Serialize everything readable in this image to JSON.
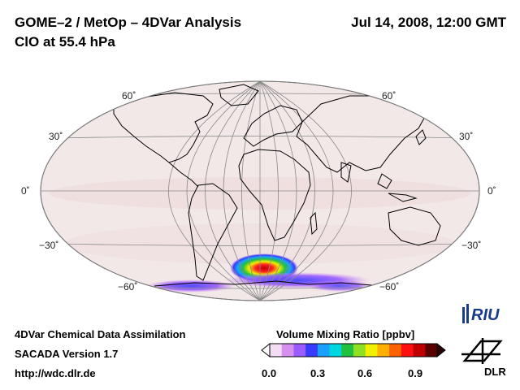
{
  "header": {
    "title_line1": "GOME–2 / MetOp – 4DVar Analysis",
    "title_line2": "ClO at 55.4 hPa",
    "datetime": "Jul 14, 2008, 12:00 GMT"
  },
  "map": {
    "projection": "Hammer-Aitoff (world)",
    "lat_labels": {
      "n60": "60˚",
      "n30": "30˚",
      "eq": "0˚",
      "s30": "−30˚",
      "s60": "−60˚"
    },
    "colors": {
      "ocean_fill": "#f3e8e8",
      "grid": "#8a8a8a",
      "coast": "#000000",
      "low": "#ff80ff",
      "high": "#8b0000"
    }
  },
  "colorbar": {
    "title": "Volume Mixing Ratio [ppbv]",
    "ticks": [
      "0.0",
      "0.3",
      "0.6",
      "0.9"
    ],
    "colors": [
      "#f5dcf5",
      "#d890f0",
      "#9a5cff",
      "#3a3aff",
      "#1aa0ff",
      "#00d6e0",
      "#20c040",
      "#8ee020",
      "#f0f000",
      "#ffb000",
      "#ff6000",
      "#ff1010",
      "#c00000",
      "#5a0000"
    ]
  },
  "footer": {
    "line1": "4DVar Chemical Data Assimilation",
    "line2": "SACADA Version 1.7",
    "line3": "http://wdc.dlr.de"
  },
  "logos": {
    "riu": "RIU",
    "dlr": "DLR"
  }
}
